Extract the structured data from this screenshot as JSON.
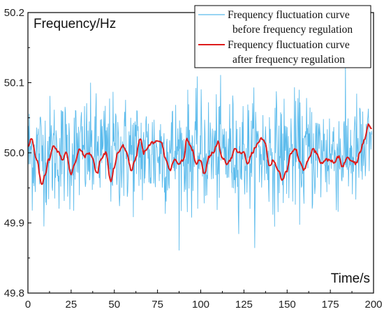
{
  "chart_data": {
    "type": "line",
    "ylabel": "Frequency/Hz",
    "xlabel": "Time/s",
    "xlim": [
      0,
      200
    ],
    "ylim": [
      49.8,
      50.2
    ],
    "x_ticks": [
      0,
      25,
      50,
      75,
      100,
      125,
      150,
      175,
      200
    ],
    "y_ticks": [
      49.8,
      49.9,
      50.0,
      50.1,
      50.2
    ],
    "grid": false,
    "legend_position": "top-right",
    "series": [
      {
        "name": "Frequency fluctuation curve before frequency regulation",
        "name_lines": [
          "Frequency fluctuation curve",
          "before frequency regulation"
        ],
        "color": "#5bbbec",
        "style": "noisy",
        "x_start": 0,
        "x_step": 0.25,
        "mean": 50.0,
        "std": 0.04,
        "min": 49.86,
        "max": 50.13
      },
      {
        "name": "Frequency fluctuation curve after frequency regulation",
        "name_lines": [
          "Frequency fluctuation curve",
          "after frequency regulation"
        ],
        "color": "#dd1c1c",
        "style": "smooth",
        "x": [
          0,
          2,
          5,
          8,
          10,
          12,
          15,
          18,
          20,
          22,
          25,
          27,
          30,
          33,
          35,
          37,
          40,
          42,
          45,
          48,
          50,
          52,
          55,
          57,
          60,
          62,
          65,
          67,
          70,
          72,
          75,
          77,
          80,
          82,
          85,
          87,
          90,
          92,
          95,
          97,
          100,
          102,
          105,
          107,
          110,
          112,
          115,
          117,
          120,
          122,
          125,
          127,
          130,
          132,
          135,
          137,
          140,
          142,
          145,
          147,
          150,
          152,
          155,
          157,
          160,
          162,
          165,
          167,
          170,
          172,
          175,
          177,
          180,
          182,
          185,
          187,
          190,
          192,
          195,
          197,
          199
        ],
        "y": [
          50.01,
          50.02,
          49.99,
          49.955,
          49.97,
          49.99,
          50.01,
          50.0,
          49.99,
          50.0,
          49.97,
          49.985,
          50.005,
          49.995,
          50.0,
          49.995,
          49.97,
          49.99,
          50.0,
          49.96,
          49.98,
          50.0,
          50.01,
          50.0,
          49.975,
          49.99,
          50.02,
          50.0,
          50.01,
          50.015,
          50.015,
          50.015,
          49.99,
          49.975,
          49.99,
          49.985,
          49.99,
          50.02,
          50.005,
          49.985,
          49.99,
          49.97,
          49.995,
          50.0,
          50.015,
          49.995,
          49.985,
          49.99,
          50.005,
          50.0,
          50.0,
          49.985,
          50.0,
          50.01,
          50.02,
          50.015,
          49.98,
          49.99,
          49.975,
          49.96,
          49.975,
          50.0,
          50.005,
          49.99,
          49.975,
          49.99,
          50.005,
          50.0,
          49.985,
          49.99,
          49.99,
          49.985,
          49.995,
          49.98,
          49.995,
          49.99,
          49.985,
          50.0,
          50.02,
          50.04,
          50.035
        ]
      }
    ]
  }
}
